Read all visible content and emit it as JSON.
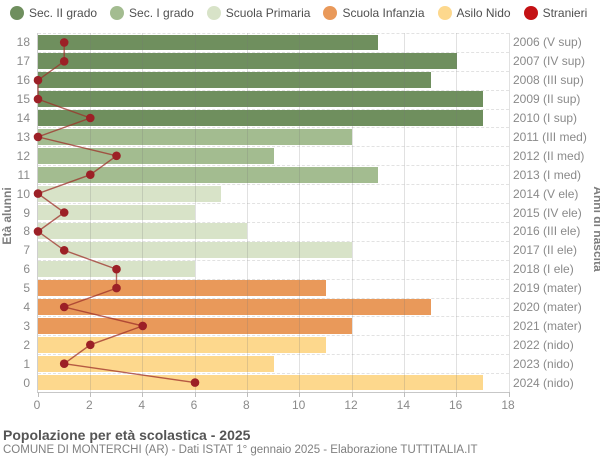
{
  "legend": [
    {
      "id": "sec2",
      "label": "Sec. II grado"
    },
    {
      "id": "sec1",
      "label": "Sec. I grado"
    },
    {
      "id": "primaria",
      "label": "Scuola Primaria"
    },
    {
      "id": "infanzia",
      "label": "Scuola Infanzia"
    },
    {
      "id": "nido",
      "label": "Asilo Nido"
    },
    {
      "id": "stranieri",
      "label": "Stranieri"
    }
  ],
  "colors": {
    "sec2": "#6f8f5e",
    "sec1": "#a3bc90",
    "primaria": "#d8e3c8",
    "infanzia": "#e9995a",
    "nido": "#fdd88d",
    "stranieri_legend": "#c41114",
    "stranieri_dot": "#9c2026",
    "stranieri_line": "rgba(158,48,42,0.75)"
  },
  "chart_data": {
    "type": "bar",
    "orientation": "horizontal",
    "title": "Popolazione per età scolastica - 2025",
    "ylabel_left": "Età alunni",
    "ylabel_right": "Anni di nascita",
    "xlim": [
      0,
      18
    ],
    "xticks": [
      0,
      2,
      4,
      6,
      8,
      10,
      12,
      14,
      16,
      18
    ],
    "grid": true,
    "legend_position": "top",
    "rows": [
      {
        "age": 18,
        "birth_label": "2006 (V sup)",
        "group": "sec2",
        "value": 13,
        "stranieri": 1
      },
      {
        "age": 17,
        "birth_label": "2007 (IV sup)",
        "group": "sec2",
        "value": 16,
        "stranieri": 1
      },
      {
        "age": 16,
        "birth_label": "2008 (III sup)",
        "group": "sec2",
        "value": 15,
        "stranieri": 0
      },
      {
        "age": 15,
        "birth_label": "2009 (II sup)",
        "group": "sec2",
        "value": 17,
        "stranieri": 0
      },
      {
        "age": 14,
        "birth_label": "2010 (I sup)",
        "group": "sec2",
        "value": 17,
        "stranieri": 2
      },
      {
        "age": 13,
        "birth_label": "2011 (III med)",
        "group": "sec1",
        "value": 12,
        "stranieri": 0
      },
      {
        "age": 12,
        "birth_label": "2012 (II med)",
        "group": "sec1",
        "value": 9,
        "stranieri": 3
      },
      {
        "age": 11,
        "birth_label": "2013 (I med)",
        "group": "sec1",
        "value": 13,
        "stranieri": 2
      },
      {
        "age": 10,
        "birth_label": "2014 (V ele)",
        "group": "primaria",
        "value": 7,
        "stranieri": 0
      },
      {
        "age": 9,
        "birth_label": "2015 (IV ele)",
        "group": "primaria",
        "value": 6,
        "stranieri": 1
      },
      {
        "age": 8,
        "birth_label": "2016 (III ele)",
        "group": "primaria",
        "value": 8,
        "stranieri": 0
      },
      {
        "age": 7,
        "birth_label": "2017 (II ele)",
        "group": "primaria",
        "value": 12,
        "stranieri": 1
      },
      {
        "age": 6,
        "birth_label": "2018 (I ele)",
        "group": "primaria",
        "value": 6,
        "stranieri": 3
      },
      {
        "age": 5,
        "birth_label": "2019 (mater)",
        "group": "infanzia",
        "value": 11,
        "stranieri": 3
      },
      {
        "age": 4,
        "birth_label": "2020 (mater)",
        "group": "infanzia",
        "value": 15,
        "stranieri": 1
      },
      {
        "age": 3,
        "birth_label": "2021 (mater)",
        "group": "infanzia",
        "value": 12,
        "stranieri": 4
      },
      {
        "age": 2,
        "birth_label": "2022 (nido)",
        "group": "nido",
        "value": 11,
        "stranieri": 2
      },
      {
        "age": 1,
        "birth_label": "2023 (nido)",
        "group": "nido",
        "value": 9,
        "stranieri": 1
      },
      {
        "age": 0,
        "birth_label": "2024 (nido)",
        "group": "nido",
        "value": 17,
        "stranieri": 6
      }
    ]
  },
  "footer": {
    "title": "Popolazione per età scolastica - 2025",
    "subtitle": "COMUNE DI MONTERCHI (AR) - Dati ISTAT 1° gennaio 2025 - Elaborazione TUTTITALIA.IT"
  }
}
